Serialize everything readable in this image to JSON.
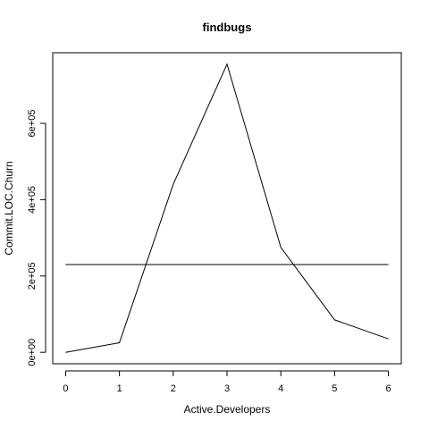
{
  "chart_data": {
    "type": "line",
    "title": "findbugs",
    "xlabel": "Active.Developers",
    "ylabel": "Commit.LOC.Churn",
    "x": [
      0,
      1,
      2,
      3,
      4,
      5,
      6
    ],
    "series": [
      {
        "values": [
          0,
          25000,
          440000,
          755000,
          275000,
          85000,
          35000
        ]
      },
      {
        "values": [
          230000,
          230000,
          230000,
          230000,
          230000,
          230000,
          230000
        ]
      }
    ],
    "xlim": [
      -0.24,
      6.24
    ],
    "ylim": [
      -30000,
      785000
    ],
    "x_ticks": [
      {
        "value": 0,
        "label": "0"
      },
      {
        "value": 1,
        "label": "1"
      },
      {
        "value": 2,
        "label": "2"
      },
      {
        "value": 3,
        "label": "3"
      },
      {
        "value": 4,
        "label": "4"
      },
      {
        "value": 5,
        "label": "5"
      },
      {
        "value": 6,
        "label": "6"
      }
    ],
    "y_ticks": [
      {
        "value": 0,
        "label": "0e+00"
      },
      {
        "value": 200000,
        "label": "2e+05"
      },
      {
        "value": 400000,
        "label": "4e+05"
      },
      {
        "value": 600000,
        "label": "6e+05"
      }
    ],
    "grid": false,
    "legend": "none",
    "colors": {
      "line": "#000000",
      "background": "#ffffff"
    }
  }
}
